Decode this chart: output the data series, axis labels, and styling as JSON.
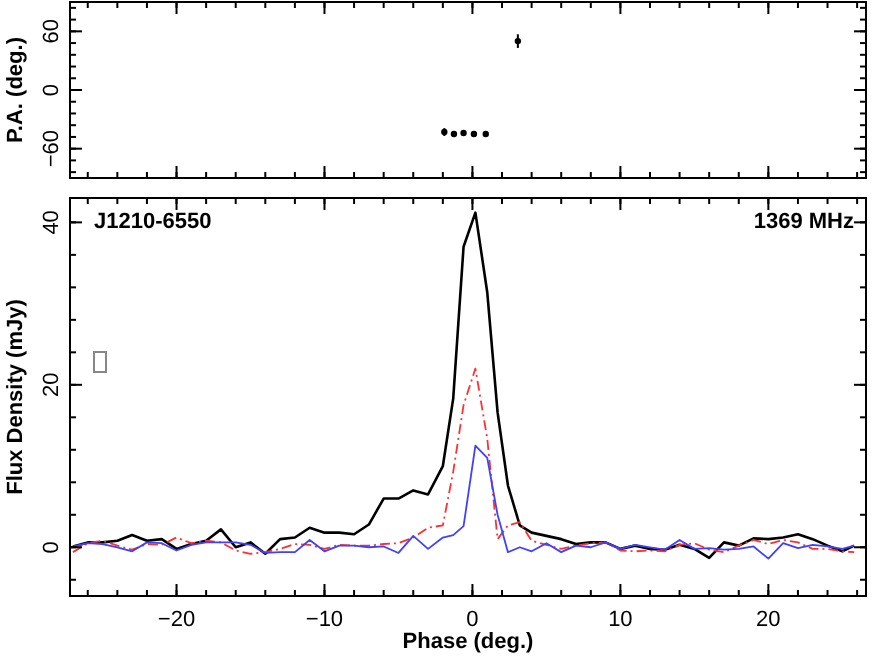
{
  "chart_data": [
    {
      "type": "scatter",
      "ylabel": "P.A. (deg.)",
      "xlim": [
        -27.2,
        26.6
      ],
      "ylim": [
        -90,
        90
      ],
      "xticks": [
        -20,
        -10,
        0,
        10,
        20
      ],
      "yticks": [
        -60,
        0,
        60
      ],
      "tick_labels": "y",
      "marker": "circle",
      "series": [
        {
          "color": "#000000",
          "x": [
            -1.9,
            -1.25,
            -0.6,
            0.1,
            0.9,
            3.07
          ],
          "values": [
            -43,
            -45,
            -44,
            -45,
            -45,
            50
          ],
          "errors": [
            4,
            1,
            1,
            1,
            1,
            7
          ]
        }
      ]
    },
    {
      "type": "line",
      "xlabel": "Phase (deg.)",
      "ylabel": "Flux Density (mJy)",
      "xlim": [
        -27.2,
        26.6
      ],
      "ylim": [
        -6,
        43
      ],
      "xticks": [
        -20,
        -10,
        0,
        10,
        20
      ],
      "yticks": [
        0,
        20,
        40
      ],
      "annotations": [
        "J1210-6550",
        "1369 MHz"
      ],
      "x": [
        -27,
        -26,
        -25,
        -24,
        -23,
        -22,
        -21,
        -20,
        -19,
        -18,
        -17,
        -16,
        -15,
        -14,
        -13,
        -12,
        -11,
        -10,
        -9,
        -8,
        -7,
        -6,
        -5,
        -4,
        -3,
        -2,
        -1.3,
        -0.6,
        0.2,
        1,
        1.7,
        2.4,
        3.2,
        4,
        5,
        6,
        7,
        8,
        9,
        10,
        11,
        12,
        13,
        14,
        15,
        16,
        17,
        18,
        19,
        20,
        21,
        22,
        23,
        24,
        25,
        25.8
      ],
      "series": [
        {
          "color": "#000000",
          "line_style": "solid",
          "values": [
            0.1,
            0.6,
            0.6,
            0.8,
            1.5,
            0.8,
            1.0,
            -0.2,
            0.4,
            0.8,
            2.2,
            0,
            0.6,
            -0.8,
            1.0,
            1.2,
            2.4,
            1.8,
            1.8,
            1.6,
            2.8,
            6.0,
            6.0,
            7.0,
            6.5,
            10,
            18.3,
            37,
            41.2,
            31.4,
            16.6,
            7.6,
            2.7,
            1.8,
            1.4,
            1.0,
            0.4,
            0.6,
            0.6,
            -0.2,
            0.2,
            -0.2,
            -0.3,
            0.3,
            -0.2,
            -1.3,
            0.6,
            0.2,
            1.1,
            1.0,
            1.2,
            1.6,
            1.0,
            0.2,
            -0.5,
            0.2
          ]
        },
        {
          "color": "#ff3030",
          "line_style": "dashed",
          "values": [
            -0.6,
            0.5,
            0.8,
            0.2,
            -0.3,
            0.4,
            0.3,
            1.2,
            0.5,
            0.8,
            0.6,
            -0.4,
            -0.8,
            -0.6,
            -0.2,
            0.4,
            0.3,
            -0.2,
            0.3,
            0.2,
            0.2,
            0.4,
            0.5,
            1.2,
            2.4,
            2.7,
            9.3,
            17.5,
            22,
            13.4,
            1.0,
            2.7,
            3.1,
            0.8,
            0.3,
            -0.2,
            0.2,
            0.5,
            0.6,
            -0.4,
            -0.5,
            -0.4,
            -0.5,
            0.3,
            0.5,
            -0.3,
            -0.6,
            0.2,
            0.9,
            0.4,
            0.9,
            0.6,
            -0.2,
            -0.2,
            -0.5,
            -0.6
          ]
        },
        {
          "color": "#4040ff",
          "line_style": "solid",
          "values": [
            0.1,
            0.5,
            0.4,
            0,
            -0.5,
            0.6,
            0.5,
            -0.4,
            0.3,
            0.6,
            0.6,
            0.6,
            0.3,
            -0.7,
            -0.6,
            -0.6,
            0.9,
            -0.5,
            0.2,
            0.2,
            0,
            0.1,
            -0.7,
            1.4,
            -0.2,
            1.2,
            1.5,
            2.6,
            12.5,
            11,
            4,
            -0.6,
            0,
            -0.5,
            0.5,
            -0.6,
            0.2,
            0,
            0.6,
            -0.2,
            0.3,
            0,
            -0.3,
            0.9,
            -0.2,
            -0.1,
            -0.3,
            -0.2,
            0.1,
            -1.4,
            0.5,
            -0.1,
            0.3,
            0.1,
            -0.2,
            0.2
          ]
        }
      ]
    }
  ]
}
